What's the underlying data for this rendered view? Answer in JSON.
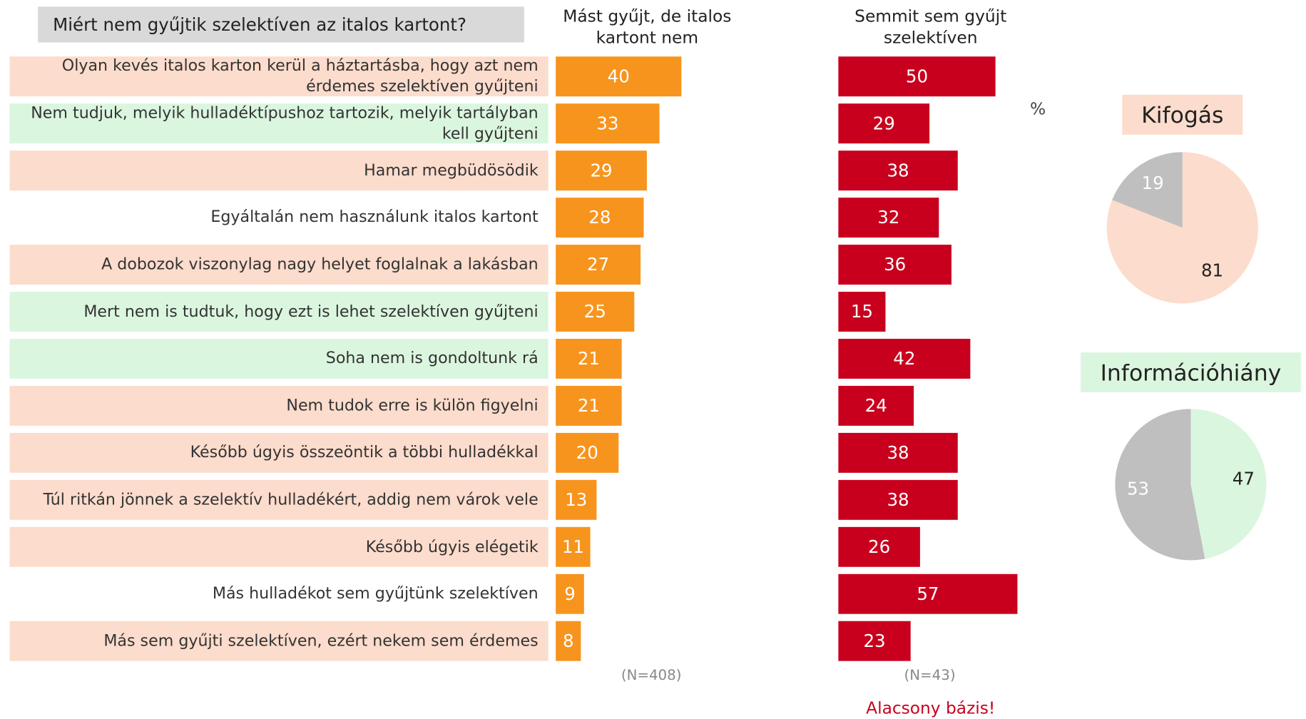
{
  "title": "Miért nem gyűjtik szelektíven az italos kartont?",
  "unit": "%",
  "chart_data": [
    {
      "type": "bar",
      "categories": [
        "Olyan kevés italos karton kerül a háztartásba, hogy azt nem érdemes szelektíven gyűjteni",
        "Nem tudjuk, melyik hulladéktípushoz tartozik, melyik tartályban kell gyűjteni",
        "Hamar megbüdösödik",
        "Egyáltalán nem használunk italos kartont",
        "A dobozok viszonylag nagy helyet foglalnak a lakásban",
        "Mert nem is tudtuk, hogy ezt is lehet szelektíven gyűjteni",
        "Soha nem is gondoltunk rá",
        "Nem tudok erre is külön figyelni",
        "Később úgyis összeöntik a többi hulladékkal",
        "Túl ritkán jönnek a szelektív hulladékért, addig nem várok vele",
        "Később úgyis elégetik",
        "Más hulladékot sem gyűjtünk szelektíven",
        "Más sem gyűjti szelektíven, ezért nekem sem érdemes"
      ],
      "row_colors": [
        "#fcdccc",
        "#dbf6df",
        "#fcdccc",
        null,
        "#fcdccc",
        "#dbf6df",
        "#dbf6df",
        "#fcdccc",
        "#fcdccc",
        "#fcdccc",
        "#fcdccc",
        null,
        "#fcdccc"
      ],
      "series": [
        {
          "name": "Mást gyűjt, de italos kartont nem",
          "color": "#f7941d",
          "values": [
            40,
            33,
            29,
            28,
            27,
            25,
            21,
            21,
            20,
            13,
            11,
            9,
            8
          ],
          "note": "(N=408)"
        },
        {
          "name": "Semmit sem gyűjt szelektíven",
          "color": "#c8001e",
          "values": [
            50,
            29,
            38,
            32,
            36,
            15,
            42,
            24,
            38,
            38,
            26,
            57,
            23
          ],
          "note": "(N=43)",
          "warning": "Alacsony bázis!"
        }
      ]
    },
    {
      "type": "pie",
      "title": "Kifogás",
      "title_color": "#fcdccc",
      "values": [
        81,
        19
      ],
      "colors": [
        "#fcdccc",
        "#bfbfbf"
      ],
      "label_colors": [
        "#222222",
        "#ffffff"
      ]
    },
    {
      "type": "pie",
      "title": "Információhiány",
      "title_color": "#dbf6df",
      "values": [
        47,
        53
      ],
      "colors": [
        "#dbf6df",
        "#bfbfbf"
      ],
      "label_colors": [
        "#222222",
        "#ffffff"
      ]
    }
  ]
}
